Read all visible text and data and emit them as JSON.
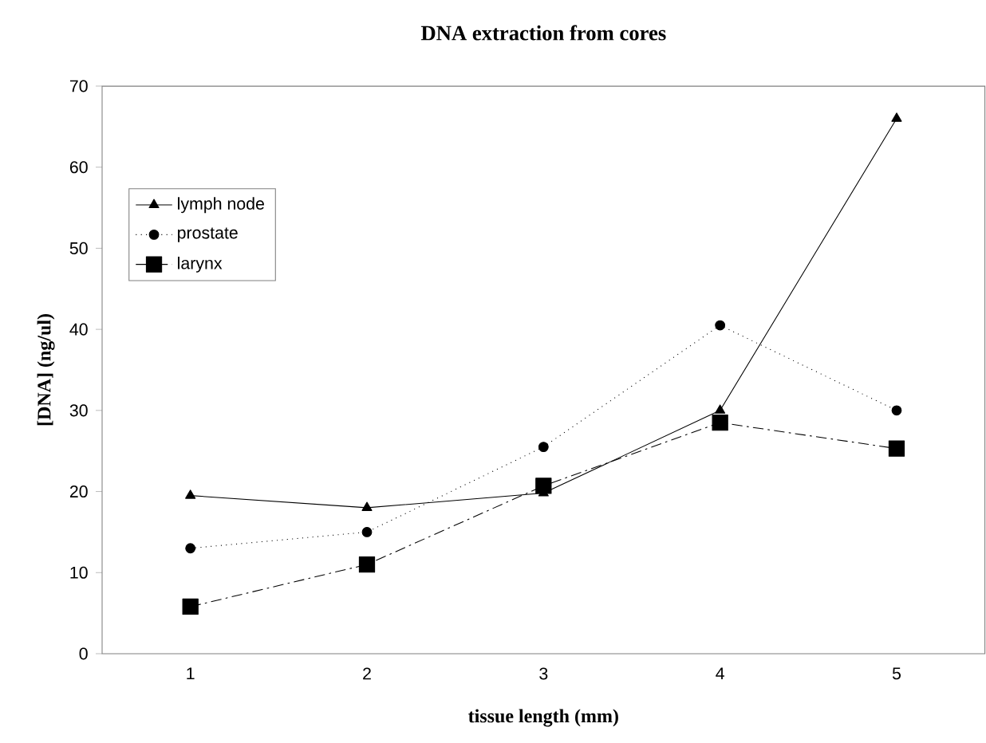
{
  "chart_data": {
    "type": "line",
    "title": "DNA extraction from cores",
    "xlabel": "tissue length (mm)",
    "ylabel": "[DNA] (ng/ul)",
    "categories": [
      "1",
      "2",
      "3",
      "4",
      "5"
    ],
    "series": [
      {
        "name": "lymph node",
        "color": "#000000",
        "marker": "triangle",
        "line_style": "solid",
        "values": [
          19.5,
          18,
          19.8,
          30,
          66
        ]
      },
      {
        "name": "prostate",
        "color": "#000000",
        "marker": "circle",
        "line_style": "dotted",
        "values": [
          13,
          15,
          25.5,
          40.5,
          30
        ]
      },
      {
        "name": "larynx",
        "color": "#000000",
        "marker": "square",
        "line_style": "dashdot",
        "values": [
          5.8,
          11,
          20.7,
          28.5,
          25.3
        ]
      }
    ],
    "ylim": [
      0,
      70
    ],
    "yticks": [
      0,
      10,
      20,
      30,
      40,
      50,
      60,
      70
    ],
    "legend": "top left",
    "grid": false
  }
}
